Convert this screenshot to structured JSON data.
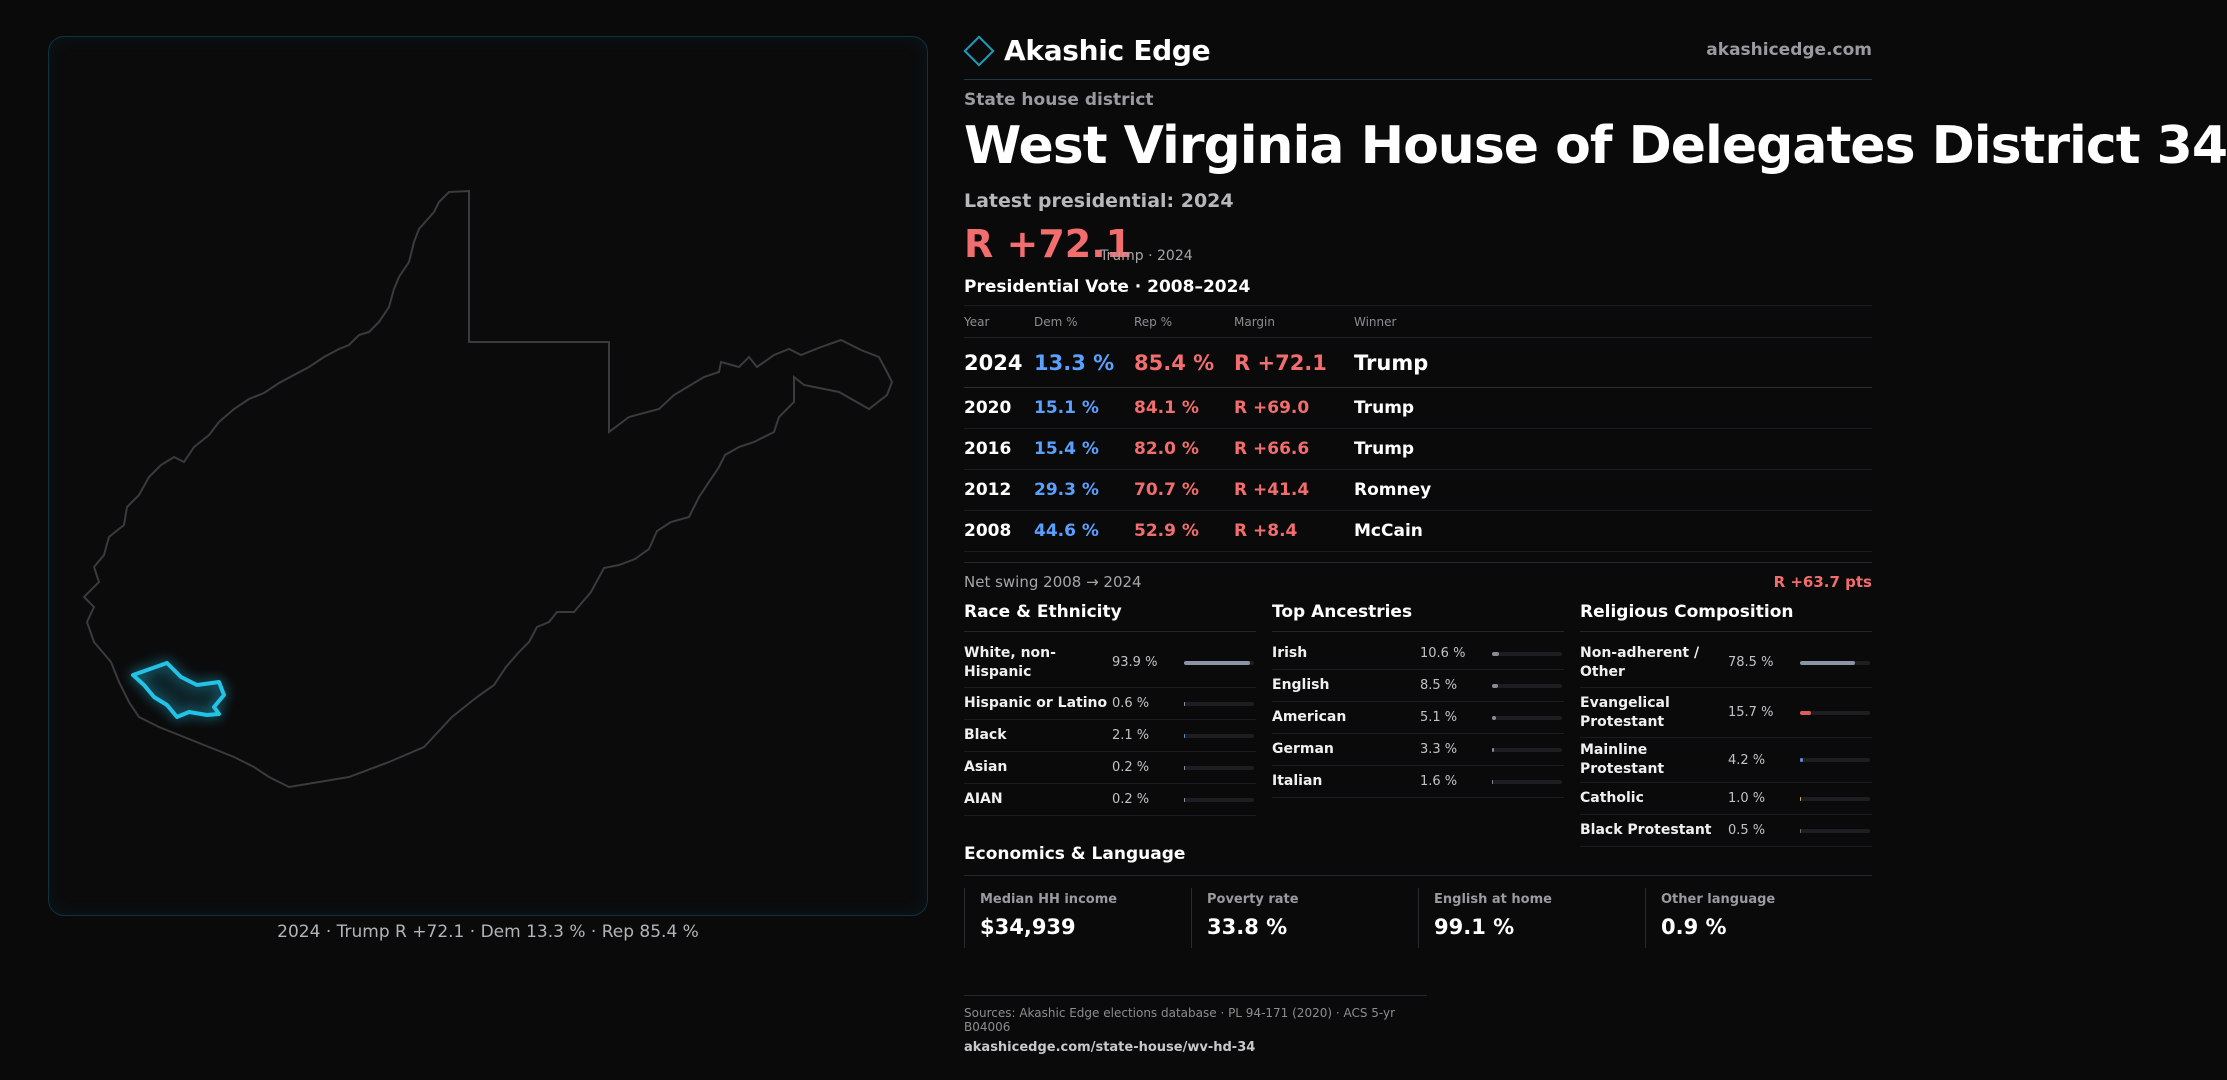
{
  "brand": {
    "name": "Akashic Edge",
    "site": "akashicedge.com"
  },
  "page": {
    "kicker": "State house district",
    "title": "West Virginia House of Delegates District 34",
    "latest_label": "Latest presidential: 2024",
    "latest_margin": "R +72.1",
    "latest_sub": "Trump · 2024"
  },
  "map": {
    "caption": "2024 · Trump R +72.1 · Dem 13.3 % · Rep 85.4 %"
  },
  "presidential": {
    "title": "Presidential Vote · 2008–2024",
    "headers": {
      "year": "Year",
      "dem": "Dem %",
      "rep": "Rep %",
      "margin": "Margin",
      "winner": "Winner"
    },
    "rows": [
      {
        "year": "2024",
        "dem": "13.3 %",
        "rep": "85.4 %",
        "margin": "R +72.1",
        "winner": "Trump"
      },
      {
        "year": "2020",
        "dem": "15.1 %",
        "rep": "84.1 %",
        "margin": "R +69.0",
        "winner": "Trump"
      },
      {
        "year": "2016",
        "dem": "15.4 %",
        "rep": "82.0 %",
        "margin": "R +66.6",
        "winner": "Trump"
      },
      {
        "year": "2012",
        "dem": "29.3 %",
        "rep": "70.7 %",
        "margin": "R +41.4",
        "winner": "Romney"
      },
      {
        "year": "2008",
        "dem": "44.6 %",
        "rep": "52.9 %",
        "margin": "R +8.4",
        "winner": "McCain"
      }
    ],
    "swing_label": "Net swing 2008 → 2024",
    "swing_value": "R +63.7 pts"
  },
  "race": {
    "title": "Race & Ethnicity",
    "items": [
      {
        "label": "White, non-Hispanic",
        "value": "93.9 %",
        "pct": 93.9
      },
      {
        "label": "Hispanic or Latino",
        "value": "0.6 %",
        "pct": 0.6
      },
      {
        "label": "Black",
        "value": "2.1 %",
        "pct": 2.1
      },
      {
        "label": "Asian",
        "value": "0.2 %",
        "pct": 0.2
      },
      {
        "label": "AIAN",
        "value": "0.2 %",
        "pct": 0.2
      }
    ]
  },
  "ancestry": {
    "title": "Top Ancestries",
    "items": [
      {
        "label": "Irish",
        "value": "10.6 %",
        "pct": 10.6
      },
      {
        "label": "English",
        "value": "8.5 %",
        "pct": 8.5
      },
      {
        "label": "American",
        "value": "5.1 %",
        "pct": 5.1
      },
      {
        "label": "German",
        "value": "3.3 %",
        "pct": 3.3
      },
      {
        "label": "Italian",
        "value": "1.6 %",
        "pct": 1.6
      }
    ]
  },
  "religion": {
    "title": "Religious Composition",
    "items": [
      {
        "label": "Non-adherent / Other",
        "value": "78.5 %",
        "pct": 78.5
      },
      {
        "label": "Evangelical Protestant",
        "value": "15.7 %",
        "pct": 15.7
      },
      {
        "label": "Mainline Protestant",
        "value": "4.2 %",
        "pct": 4.2
      },
      {
        "label": "Catholic",
        "value": "1.0 %",
        "pct": 1.0
      },
      {
        "label": "Black Protestant",
        "value": "0.5 %",
        "pct": 0.5
      }
    ]
  },
  "economics": {
    "title": "Economics & Language",
    "cells": [
      {
        "label": "Median HH income",
        "value": "$34,939"
      },
      {
        "label": "Poverty rate",
        "value": "33.8 %"
      },
      {
        "label": "English at home",
        "value": "99.1 %"
      },
      {
        "label": "Other language",
        "value": "0.9 %"
      }
    ]
  },
  "sources": {
    "text": "Sources: Akashic Edge elections database · PL 94-171 (2020) · ACS 5-yr B04006",
    "url": "akashicedge.com/state-house/wv-hd-34"
  },
  "colors": {
    "dem": "#5aa0ff",
    "rep": "#f26d6d",
    "accent": "#1b9fbf",
    "highlight": "#22c3e6",
    "bar_race": "#8a94a6",
    "bar_ancestry": "#8a8a90",
    "bar_nonadherent": "#8a94a6",
    "bar_evangelical": "#e05a5a",
    "bar_mainline": "#5a8fe0",
    "bar_catholic": "#c9b04a",
    "bar_blackprot": "#6a6a70"
  }
}
